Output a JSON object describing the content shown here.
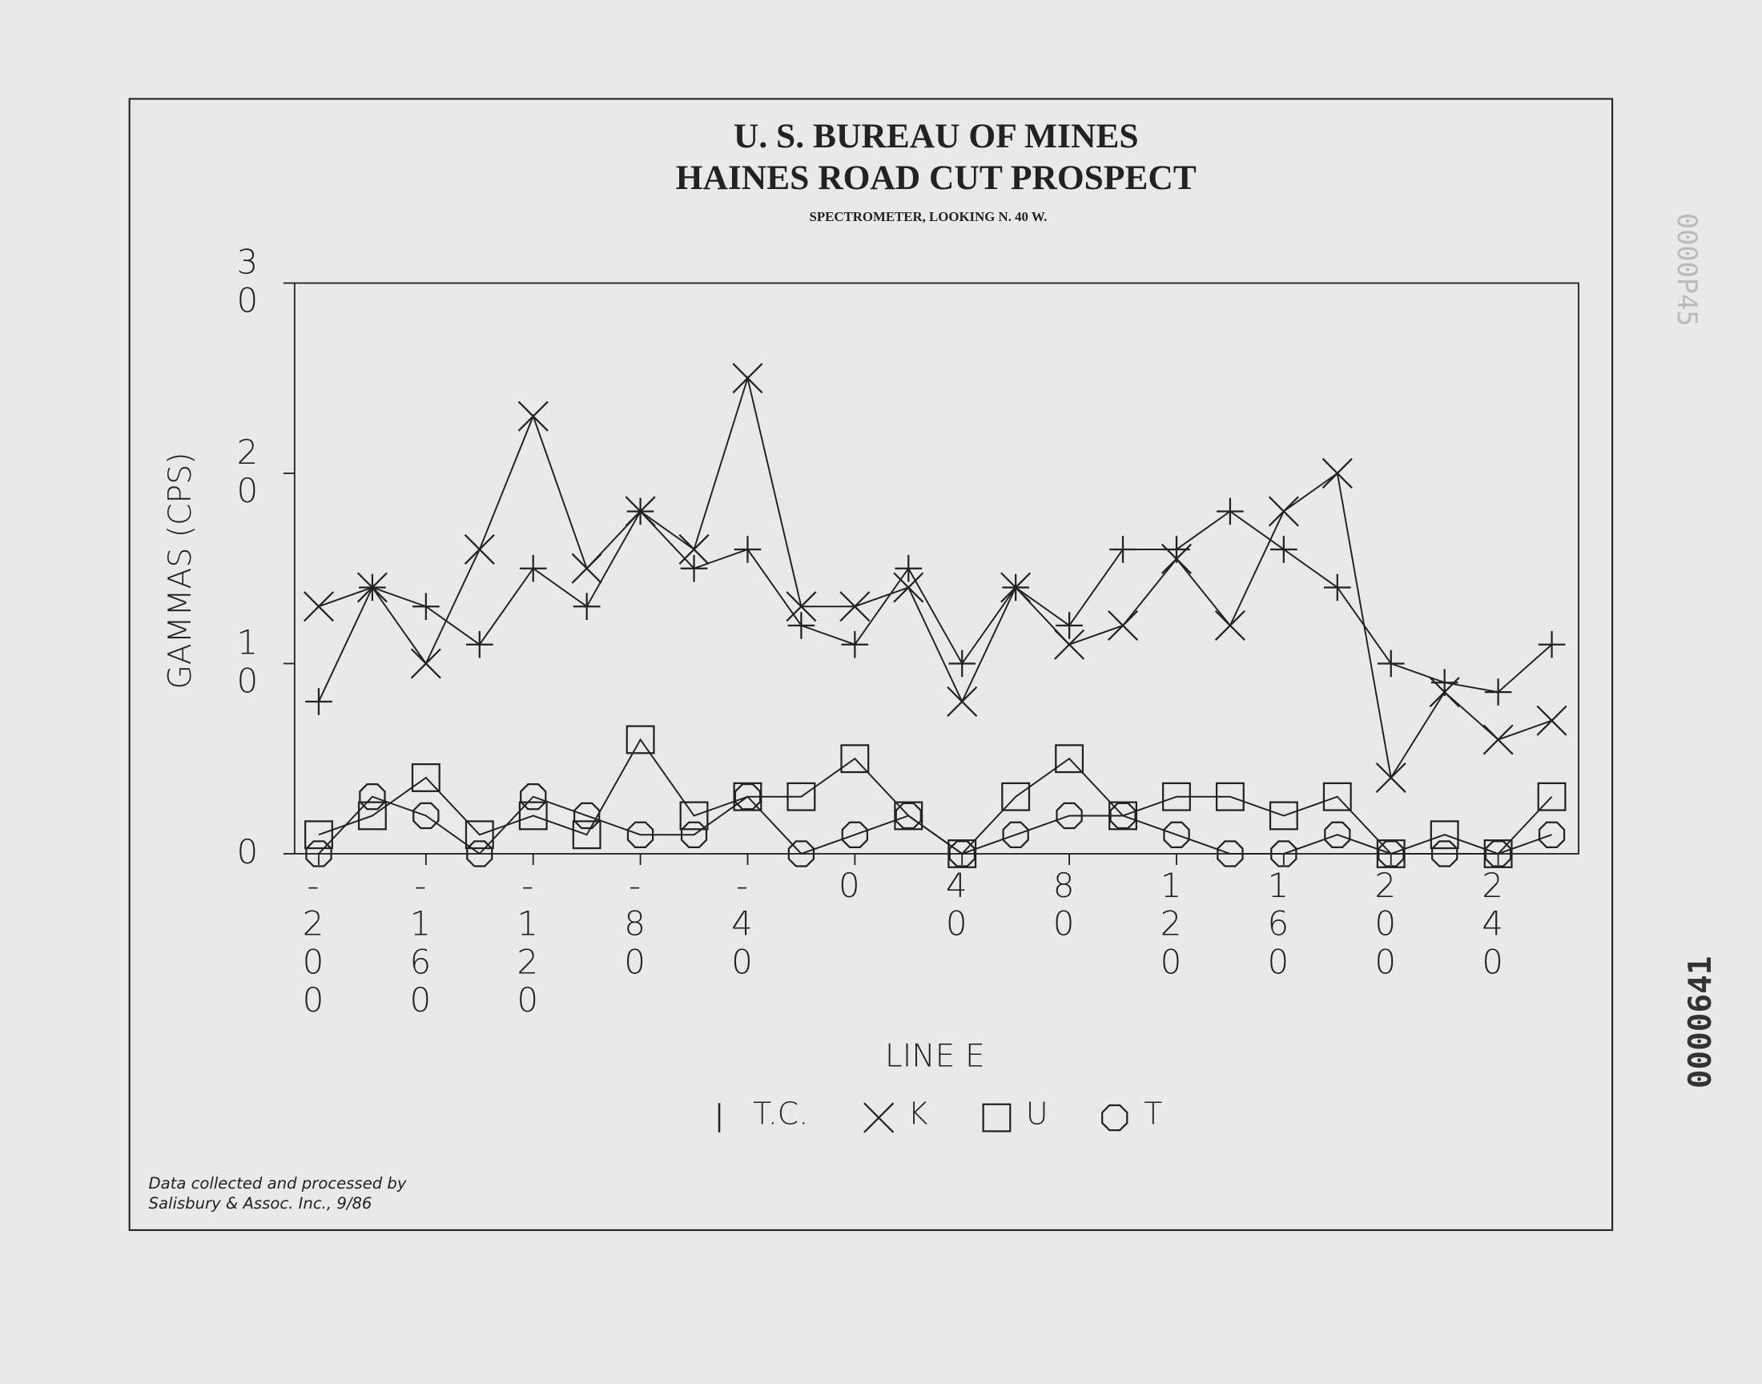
{
  "chart_data": {
    "type": "line",
    "title": "U. S. BUREAU OF MINES",
    "subtitle": "HAINES ROAD CUT PROSPECT",
    "caption": "SPECTROMETER, LOOKING N. 40 W.",
    "y_label": "GAMMAS (CPS)",
    "x_label": "LINE E",
    "note": [
      "Data collected and processed by",
      "Salisbury & Assoc. Inc., 9/86"
    ],
    "stamps": [
      "0000P45",
      "0000641"
    ],
    "x": [
      -200,
      -180,
      -160,
      -140,
      -120,
      -100,
      -80,
      -60,
      -40,
      -20,
      0,
      20,
      40,
      60,
      80,
      100,
      120,
      140,
      160,
      180,
      200,
      220,
      240,
      260
    ],
    "series": [
      {
        "name": "T.C.",
        "color": "#222222",
        "marker": "plus",
        "values": [
          8,
          14,
          13,
          11,
          15,
          13,
          18,
          15,
          16,
          12,
          11,
          15,
          10,
          14,
          12,
          16,
          16,
          18,
          16,
          14,
          10,
          9,
          8.5,
          11
        ]
      },
      {
        "name": "K",
        "color": "#222222",
        "marker": "x",
        "values": [
          13,
          14,
          10,
          16,
          23,
          15,
          18,
          16,
          25,
          13,
          13,
          14,
          8,
          14,
          11,
          12,
          15.5,
          12,
          18,
          20,
          4,
          8.5,
          6,
          7
        ]
      },
      {
        "name": "U",
        "color": "#222222",
        "marker": "square",
        "values": [
          1,
          2,
          4,
          1,
          2,
          1,
          6,
          2,
          3,
          3,
          5,
          2,
          0,
          3,
          5,
          2,
          3,
          3,
          2,
          3,
          0,
          1,
          0,
          3
        ]
      },
      {
        "name": "T",
        "color": "#222222",
        "marker": "circle",
        "values": [
          0,
          3,
          2,
          0,
          3,
          2,
          1,
          1,
          3,
          0,
          1,
          2,
          0,
          1,
          2,
          2,
          1,
          0,
          0,
          1,
          0,
          0,
          0,
          1
        ]
      }
    ],
    "xlim": [
      -209,
      270
    ],
    "xticks": [
      -200,
      -160,
      -120,
      -80,
      -40,
      0,
      40,
      80,
      120,
      160,
      200,
      240
    ],
    "ylim": [
      0,
      30
    ],
    "yticks": [
      0,
      10,
      20,
      30
    ]
  }
}
